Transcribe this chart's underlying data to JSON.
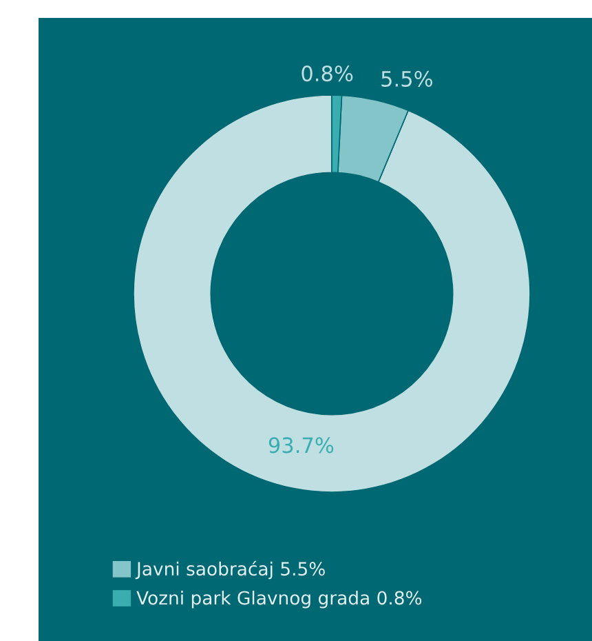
{
  "chart_data": {
    "type": "donut",
    "categories": [
      null,
      "Javni saobraćaj",
      "Vozni park Glavnog grada"
    ],
    "values": [
      93.7,
      5.5,
      0.8
    ],
    "colors": [
      "#bfdfe2",
      "#83c5c9",
      "#3aadb0"
    ],
    "value_labels": [
      "93.7%",
      "5.5%",
      "0.8%"
    ],
    "legend": "bottom left"
  }
}
